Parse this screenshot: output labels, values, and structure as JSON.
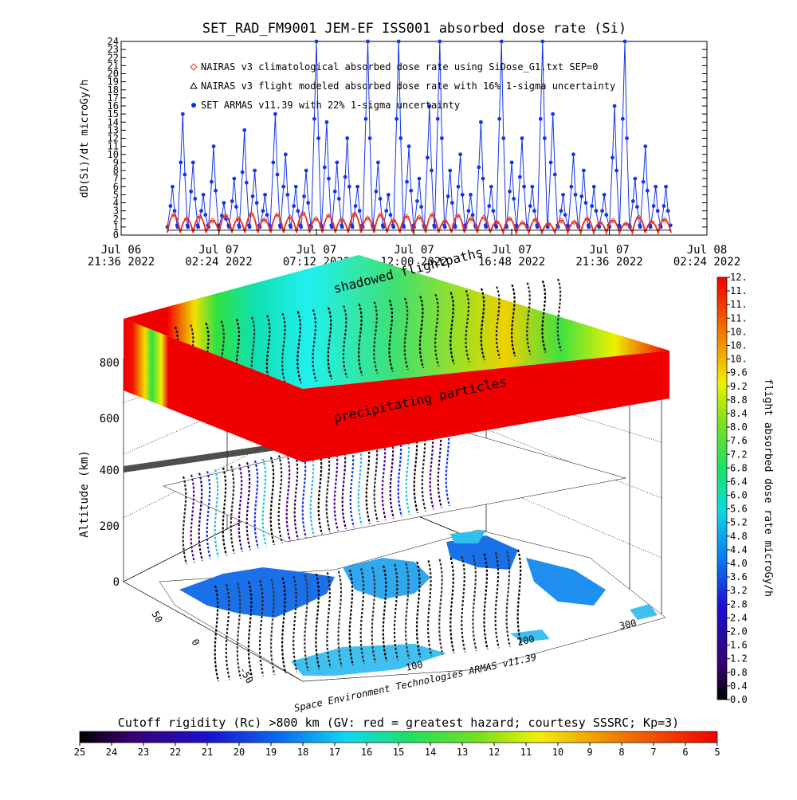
{
  "title": "SET_RAD_FM9001  JEM-EF ISS001 absorbed dose rate (Si)",
  "timeseries": {
    "ylabel": "dD(Si)/dt microGy/h",
    "ylim": [
      0,
      24
    ],
    "y_ticks": [
      "0",
      "1",
      "2",
      "3",
      "4",
      "5",
      "6",
      "7",
      "8",
      "9",
      "10",
      "11",
      "12",
      "13",
      "14",
      "15",
      "16",
      "17",
      "18",
      "19",
      "20",
      "21",
      "22",
      "23",
      "24"
    ],
    "x_ticks": [
      {
        "line1": "Jul 06",
        "line2": "21:36 2022"
      },
      {
        "line1": "Jul 07",
        "line2": "02:24 2022"
      },
      {
        "line1": "Jul 07",
        "line2": "07:12 2022"
      },
      {
        "line1": "Jul 07",
        "line2": "12:00 2022"
      },
      {
        "line1": "Jul 07",
        "line2": "16:48 2022"
      },
      {
        "line1": "Jul 07",
        "line2": "21:36 2022"
      },
      {
        "line1": "Jul 08",
        "line2": "02:24 2022"
      }
    ],
    "legend": [
      {
        "symbol": "diamond",
        "color": "#e03020",
        "text": "NAIRAS v3 climatological absorbed dose rate using SiDose_G1.txt SEP=0"
      },
      {
        "symbol": "triangle",
        "color": "#000000",
        "text": "NAIRAS v3 flight modeled absorbed dose rate with 16% 1-sigma uncertainty"
      },
      {
        "symbol": "dot",
        "color": "#1030e0",
        "text": "SET ARMAS v11.39 with 22% 1-sigma uncertainty"
      }
    ],
    "series_colors": {
      "measured": "#1535e8",
      "climatological": "#e83020",
      "modeled": "#000000"
    },
    "measured_peaks": [
      6,
      15,
      9,
      5,
      11,
      4,
      7,
      13,
      8,
      5,
      15,
      10,
      6,
      8,
      24,
      14,
      9,
      12,
      6,
      24,
      9,
      5,
      24,
      11,
      7,
      16,
      24,
      8,
      10,
      5,
      14,
      6,
      24,
      9,
      12,
      6,
      24,
      15,
      5,
      10,
      8,
      6,
      5,
      16,
      24,
      7,
      11,
      6,
      6
    ],
    "climatological_peaks": [
      2.5,
      2.0,
      2.3,
      1.8,
      2.4,
      2.0,
      2.6,
      1.9,
      2.5,
      2.2,
      2.7,
      2.0,
      2.4,
      1.9,
      2.6,
      2.1,
      2.5,
      1.8,
      2.3,
      2.2,
      2.5,
      1.7,
      2.4,
      2.0,
      2.2,
      1.6,
      2.0,
      1.5,
      1.9,
      1.4,
      1.8,
      1.6,
      2.0,
      1.5,
      1.8,
      1.4,
      2.2,
      1.6,
      1.9
    ]
  },
  "scene3d": {
    "layer_labels": [
      "shadowed flightpaths",
      "precipitating particles"
    ],
    "axis_label": "Altitude (km)",
    "alt_ticks": [
      "0",
      "200",
      "400",
      "600",
      "800"
    ],
    "lon_ticks": [
      "100",
      "200",
      "300"
    ],
    "lat_ticks": [
      "50",
      "0",
      "-50"
    ],
    "credit": "Space Environment Technologies ARMAS v11.39"
  },
  "colorbar_right": {
    "label": "flight absorbed dose rate microGy/h",
    "range": [
      0.0,
      12.0
    ],
    "ticks": [
      "0.0",
      "0.4",
      "0.8",
      "1.2",
      "1.6",
      "2.0",
      "2.4",
      "2.8",
      "3.2",
      "3.6",
      "4.0",
      "4.4",
      "4.8",
      "5.2",
      "5.6",
      "6.0",
      "6.4",
      "6.8",
      "7.2",
      "7.6",
      "8.0",
      "8.4",
      "8.8",
      "9.2",
      "9.6",
      "10.",
      "10.",
      "10.",
      "11.",
      "11.",
      "11.",
      "12."
    ]
  },
  "colorbar_bottom": {
    "title": "Cutoff rigidity (Rc) >800 km (GV: red = greatest hazard; courtesy SSSRC; Kp=3)",
    "ticks": [
      "25",
      "24",
      "23",
      "22",
      "21",
      "20",
      "19",
      "18",
      "17",
      "16",
      "15",
      "14",
      "13",
      "12",
      "11",
      "10",
      "9",
      "8",
      "7",
      "6",
      "5"
    ]
  }
}
